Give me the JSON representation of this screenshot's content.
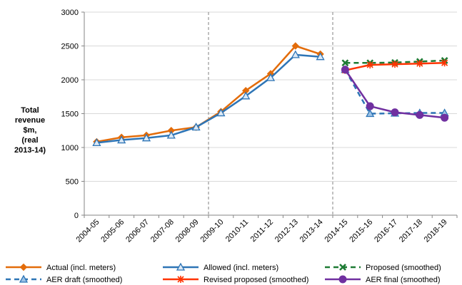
{
  "chart_data": {
    "type": "line",
    "ylabel_lines": [
      "Total",
      "revenue",
      "$m,",
      "(real",
      "2013-14)"
    ],
    "categories": [
      "2004-05",
      "2005-06",
      "2006-07",
      "2007-08",
      "2008-09",
      "2009-10",
      "2010-11",
      "2011-12",
      "2012-13",
      "2013-14",
      "2014-15",
      "2015-16",
      "2016-17",
      "2017-18",
      "2018-19"
    ],
    "ylim": [
      0,
      3000
    ],
    "yticks": [
      0,
      500,
      1000,
      1500,
      2000,
      2500,
      3000
    ],
    "grid": "horizontal",
    "legend_placement": "bottom",
    "series": [
      {
        "name": "Actual (incl. meters)",
        "color": "#E36C0A",
        "marker": "diamond",
        "dash": "solid",
        "values": [
          1085,
          1150,
          1180,
          1250,
          1300,
          1530,
          1840,
          2090,
          2500,
          2380,
          null,
          null,
          null,
          null,
          null
        ]
      },
      {
        "name": "Allowed (incl. meters)",
        "color": "#2E75B6",
        "marker": "triangle-open",
        "dash": "solid",
        "values": [
          1070,
          1110,
          1140,
          1180,
          1300,
          1510,
          1760,
          2030,
          2370,
          2340,
          null,
          null,
          null,
          null,
          null
        ]
      },
      {
        "name": "Proposed (smoothed)",
        "color": "#1E7B34",
        "marker": "x",
        "dash": "dashed",
        "values": [
          null,
          null,
          null,
          null,
          null,
          null,
          null,
          null,
          null,
          null,
          2250,
          2250,
          2255,
          2270,
          2285
        ]
      },
      {
        "name": "AER draft (smoothed)",
        "color": "#2E75B6",
        "marker": "triangle",
        "dash": "dashed",
        "values": [
          null,
          null,
          null,
          null,
          null,
          null,
          null,
          null,
          null,
          null,
          2150,
          1500,
          1505,
          1510,
          1510
        ]
      },
      {
        "name": "Revised proposed (smoothed)",
        "color": "#FF3300",
        "marker": "star",
        "dash": "solid",
        "values": [
          null,
          null,
          null,
          null,
          null,
          null,
          null,
          null,
          null,
          null,
          2140,
          2220,
          2230,
          2240,
          2250
        ]
      },
      {
        "name": "AER final (smoothed)",
        "color": "#7030A0",
        "marker": "circle",
        "dash": "solid",
        "values": [
          null,
          null,
          null,
          null,
          null,
          null,
          null,
          null,
          null,
          null,
          2150,
          1610,
          1520,
          1480,
          1440
        ]
      }
    ],
    "vlines_after_category": [
      "2008-09",
      "2013-14"
    ]
  }
}
